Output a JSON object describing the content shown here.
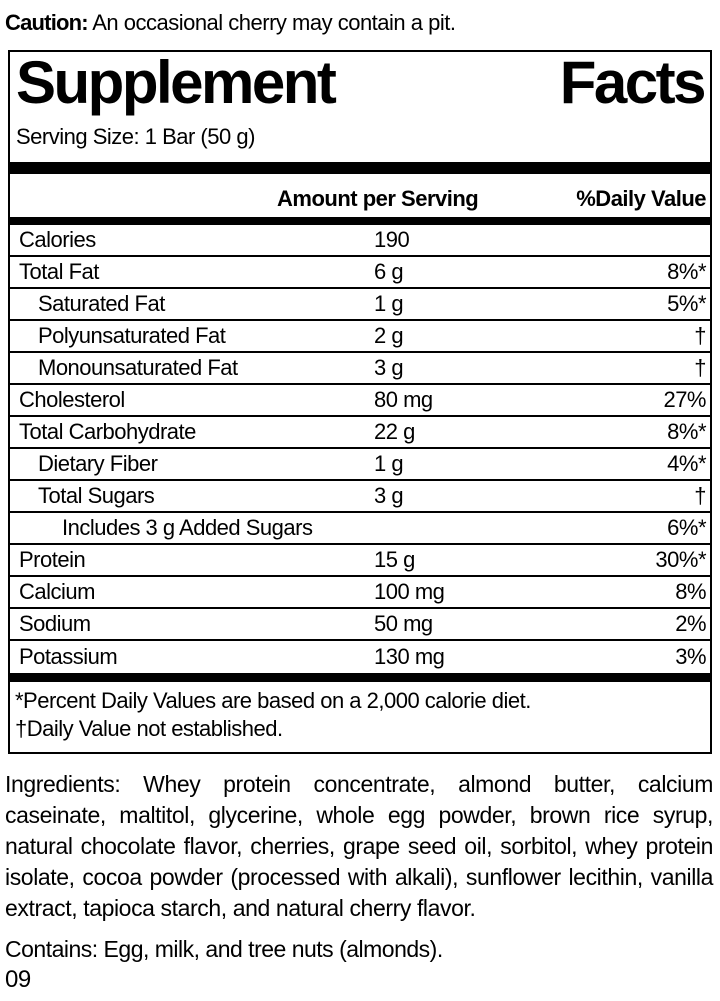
{
  "caution": {
    "label": "Caution:",
    "text": " An occasional cherry may contain a pit."
  },
  "panel": {
    "title_word1": "Supplement",
    "title_word2": "Facts",
    "serving_size": "Serving Size: 1 Bar (50 g)",
    "columns": {
      "amount": "Amount per Serving",
      "daily_value": "%Daily Value"
    },
    "rows": [
      {
        "label": "Calories",
        "indent": 0,
        "amount": "190",
        "dv": ""
      },
      {
        "label": "Total Fat",
        "indent": 0,
        "amount": "6 g",
        "dv": "8%*"
      },
      {
        "label": "Saturated Fat",
        "indent": 1,
        "amount": "1 g",
        "dv": "5%*"
      },
      {
        "label": "Polyunsaturated Fat",
        "indent": 1,
        "amount": "2 g",
        "dv": "†"
      },
      {
        "label": "Monounsaturated Fat",
        "indent": 1,
        "amount": "3 g",
        "dv": "†"
      },
      {
        "label": "Cholesterol",
        "indent": 0,
        "amount": "80 mg",
        "dv": "27%"
      },
      {
        "label": "Total Carbohydrate",
        "indent": 0,
        "amount": "22 g",
        "dv": "8%*"
      },
      {
        "label": "Dietary Fiber",
        "indent": 1,
        "amount": "1 g",
        "dv": "4%*"
      },
      {
        "label": "Total Sugars",
        "indent": 1,
        "amount": "3 g",
        "dv": "†"
      },
      {
        "label": "Includes 3 g Added Sugars",
        "indent": 2,
        "amount": "",
        "dv": "6%*"
      },
      {
        "label": "Protein",
        "indent": 0,
        "amount": "15 g",
        "dv": "30%*"
      },
      {
        "label": "Calcium",
        "indent": 0,
        "amount": "100 mg",
        "dv": "8%"
      },
      {
        "label": "Sodium",
        "indent": 0,
        "amount": "50 mg",
        "dv": "2%"
      },
      {
        "label": "Potassium",
        "indent": 0,
        "amount": "130 mg",
        "dv": "3%"
      }
    ],
    "footnotes": [
      "*Percent Daily Values are based on a 2,000 calorie diet.",
      "†Daily Value not established."
    ]
  },
  "ingredients": "Ingredients: Whey protein concentrate, almond butter, calcium caseinate, maltitol, glycerine, whole egg powder, brown rice syrup, natural chocolate flavor, cherries, grape seed oil, sorbitol, whey protein isolate, cocoa powder (processed with alkali), sunflower lecithin, vanilla extract, tapioca starch, and natural cherry flavor.",
  "contains": "Contains: Egg, milk, and tree nuts (almonds).",
  "footer_code": "09",
  "colors": {
    "text": "#000000",
    "background": "#ffffff",
    "bars": "#000000"
  }
}
